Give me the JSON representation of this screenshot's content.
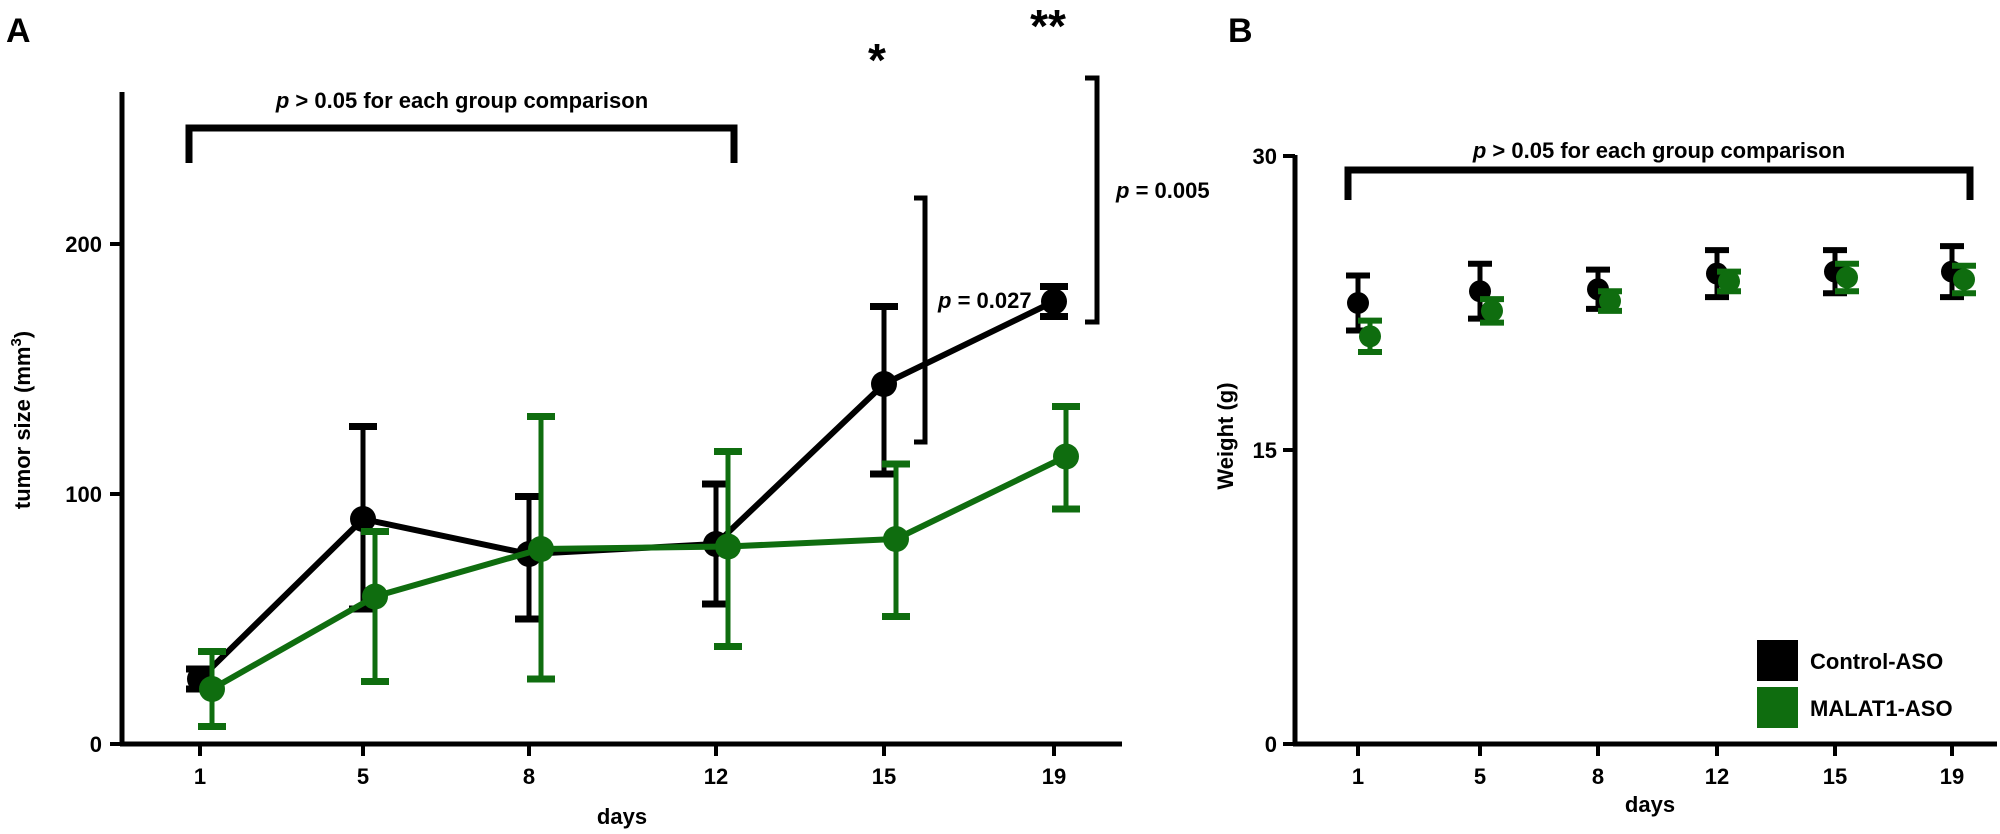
{
  "chart_data": [
    {
      "panel_label": "A",
      "type": "line",
      "xlabel": "days",
      "ylabel": "tumor size (mm",
      "ylabel_sup": "3",
      "ylabel_close": ")",
      "categories": [
        "1",
        "5",
        "8",
        "12",
        "15",
        "19"
      ],
      "yticks": [
        "0",
        "100",
        "200"
      ],
      "ylim": [
        0,
        210
      ],
      "grid": false,
      "series": [
        {
          "name": "Control-ASO",
          "color": "#000000",
          "values": [
            26,
            90,
            76,
            80,
            144,
            177
          ],
          "err_low": [
            4,
            36,
            26,
            24,
            36,
            6
          ],
          "err_high": [
            4,
            37,
            23,
            24,
            31,
            6
          ]
        },
        {
          "name": "MALAT1-ASO",
          "color": "#0f6d0f",
          "values": [
            22,
            59,
            78,
            79,
            82,
            115
          ],
          "err_low": [
            15,
            34,
            52,
            40,
            31,
            21
          ],
          "err_high": [
            15,
            26,
            53,
            38,
            30,
            20
          ]
        }
      ],
      "annotations": {
        "bracket_note_prefix": "p",
        "bracket_note_rest": " > 0.05 for each group comparison",
        "p_day15_prefix": "p",
        "p_day15_rest": " = 0.027",
        "p_day19_prefix": "p",
        "p_day19_rest": " = 0.005",
        "star_day15": "*",
        "star_day19": "**"
      }
    },
    {
      "panel_label": "B",
      "type": "scatter",
      "xlabel": "days",
      "ylabel": "Weight (g)",
      "categories": [
        "1",
        "5",
        "8",
        "12",
        "15",
        "19"
      ],
      "yticks": [
        "0",
        "15",
        "30"
      ],
      "ylim": [
        0,
        30
      ],
      "grid": false,
      "legend_position": "bottom-right",
      "series": [
        {
          "name": "Control-ASO",
          "color": "#000000",
          "values": [
            22.5,
            23.1,
            23.2,
            24.0,
            24.1,
            24.1
          ],
          "err": [
            1.4,
            1.4,
            1.0,
            1.2,
            1.1,
            1.3
          ]
        },
        {
          "name": "MALAT1-ASO",
          "color": "#0f6d0f",
          "values": [
            20.8,
            22.1,
            22.6,
            23.6,
            23.8,
            23.7
          ],
          "err": [
            0.8,
            0.6,
            0.5,
            0.5,
            0.7,
            0.7
          ]
        }
      ],
      "annotations": {
        "bracket_note_prefix": "p",
        "bracket_note_rest": " > 0.05 for each group comparison"
      }
    }
  ]
}
